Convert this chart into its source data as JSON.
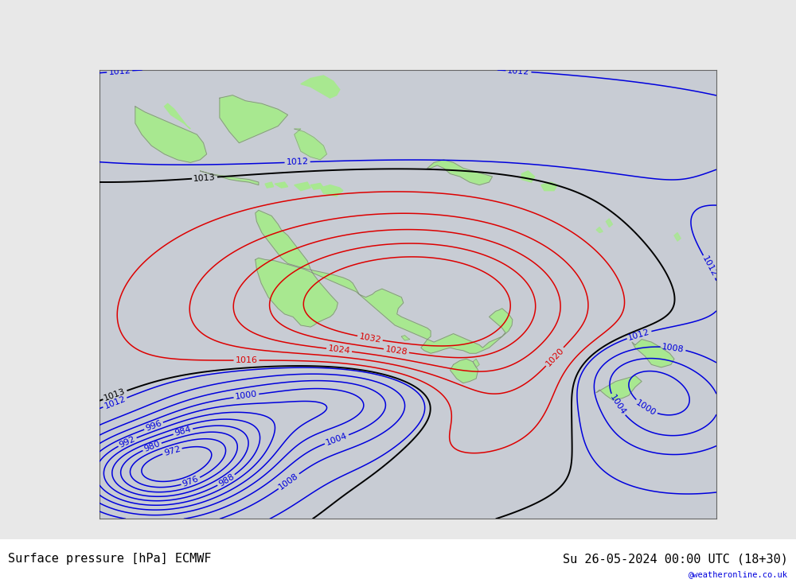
{
  "title_left": "Surface pressure [hPa] ECMWF",
  "title_right": "Su 26-05-2024 00:00 UTC (18+30)",
  "watermark": "@weatheronline.co.uk",
  "bg_color": "#c8ccd4",
  "land_color": "#a8e890",
  "figsize": [
    10.0,
    7.33
  ],
  "dpi": 100,
  "lon_min": 90,
  "lon_max": 185,
  "lat_min": -68,
  "lat_max": 12,
  "contour_color_red": "#dd0000",
  "contour_color_black": "#000000",
  "contour_color_blue": "#0000dd",
  "label_fontsize": 8,
  "title_fontsize": 11
}
